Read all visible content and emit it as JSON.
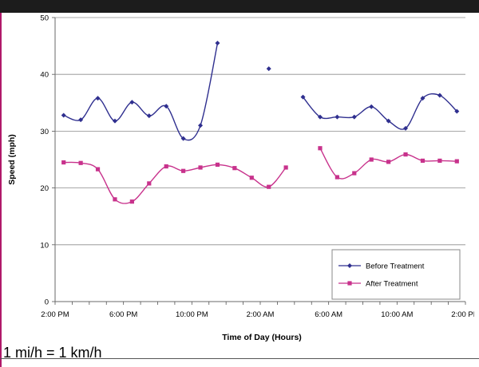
{
  "footnote": "1 mi/h = 1 km/h",
  "chart_data": {
    "type": "line",
    "xlabel": "Time of Day (Hours)",
    "ylabel": "Speed (mph)",
    "ylim": [
      0,
      50
    ],
    "yticks": [
      0,
      10,
      20,
      30,
      40,
      50
    ],
    "xticks": [
      "2:00 PM",
      "6:00 PM",
      "10:00 PM",
      "2:00 AM",
      "6:00 AM",
      "10:00 AM",
      "2:00 PM"
    ],
    "x": [
      "2:00 PM",
      "3:00 PM",
      "4:00 PM",
      "5:00 PM",
      "6:00 PM",
      "7:00 PM",
      "8:00 PM",
      "9:00 PM",
      "10:00 PM",
      "11:00 PM",
      "12:00 AM",
      "1:00 AM",
      "2:00 AM",
      "3:00 AM",
      "4:00 AM",
      "5:00 AM",
      "6:00 AM",
      "7:00 AM",
      "8:00 AM",
      "9:00 AM",
      "10:00 AM",
      "11:00 AM",
      "12:00 PM",
      "1:00 PM"
    ],
    "series": [
      {
        "name": "Before Treatment",
        "color": "#2f2f8f",
        "marker": "diamond",
        "values": [
          32.8,
          32.0,
          35.8,
          31.8,
          35.1,
          32.7,
          34.4,
          28.7,
          31.0,
          45.5,
          null,
          null,
          41.0,
          null,
          36.0,
          32.5,
          32.5,
          32.5,
          34.3,
          31.8,
          30.5,
          35.8,
          36.3,
          33.5
        ]
      },
      {
        "name": "After Treatment",
        "color": "#c8328c",
        "marker": "square",
        "values": [
          24.5,
          24.4,
          23.3,
          18.0,
          17.6,
          20.8,
          23.8,
          23.0,
          23.6,
          24.1,
          23.5,
          21.8,
          20.2,
          23.6,
          null,
          27.0,
          21.9,
          22.6,
          25.0,
          24.6,
          25.9,
          24.8,
          24.8,
          24.7
        ]
      }
    ],
    "grid": true,
    "legend": "bottom-right"
  }
}
